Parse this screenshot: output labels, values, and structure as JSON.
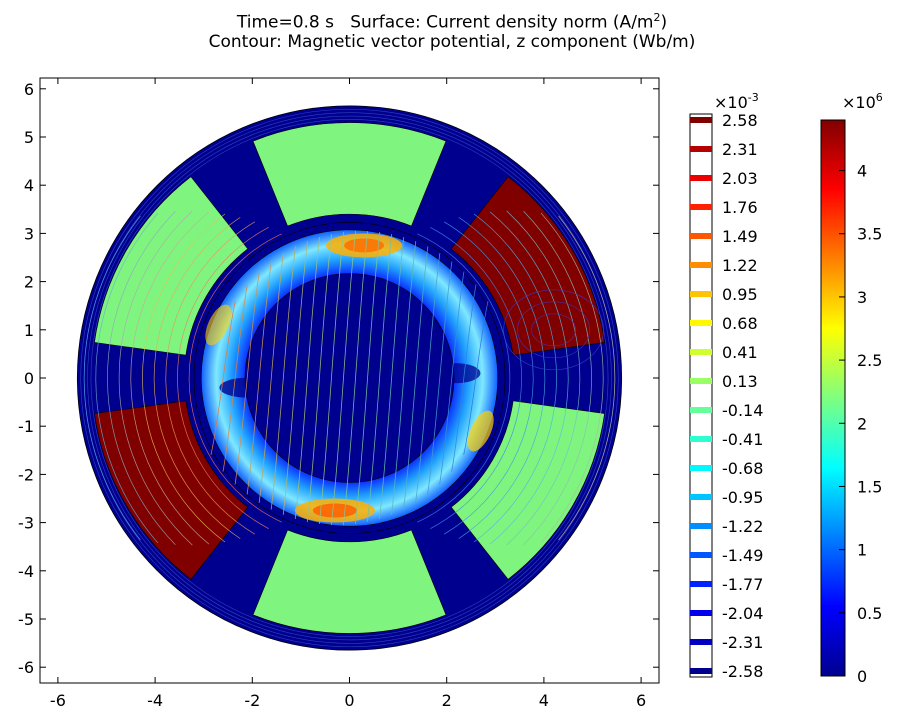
{
  "title": {
    "line1_text": "Time=0.8 s   Surface: Current density norm (A/m",
    "line1_sup": "2",
    "line1_end": ")",
    "line2": "Contour: Magnetic vector potential, z component (Wb/m)"
  },
  "chart_data": {
    "type": "heatmap",
    "title": "Time=0.8 s   Surface: Current density norm (A/m²)  Contour: Magnetic vector potential, z component (Wb/m)",
    "xlim": [
      -6.3,
      6.3
    ],
    "ylim": [
      -6.3,
      6.3
    ],
    "x_ticks": [
      -6,
      -4,
      -2,
      0,
      2,
      4,
      6
    ],
    "y_ticks": [
      -6,
      -5,
      -4,
      -3,
      -2,
      -1,
      0,
      1,
      2,
      3,
      4,
      5,
      6
    ],
    "geometry": {
      "outer_radius": 5.6,
      "stator_inner_radius": 3.2,
      "sleeve_outer_radius": 3.05,
      "sleeve_inner_radius": 2.15,
      "coil_inner_radius": 3.4,
      "coil_outer_radius": 5.3,
      "coil_half_width_deg": 22
    },
    "coils": [
      {
        "angle_deg": 90,
        "state": "mid"
      },
      {
        "angle_deg": 30,
        "state": "high"
      },
      {
        "angle_deg": -30,
        "state": "mid"
      },
      {
        "angle_deg": -90,
        "state": "mid"
      },
      {
        "angle_deg": -150,
        "state": "high"
      },
      {
        "angle_deg": 150,
        "state": "mid"
      }
    ],
    "surface_colorbar": {
      "exponent_label": "×10",
      "exponent_sup": "6",
      "range": [
        0,
        4.4
      ],
      "ticks": [
        "4",
        "3.5",
        "3",
        "2.5",
        "2",
        "1.5",
        "1",
        "0.5",
        "0"
      ],
      "tick_values": [
        4,
        3.5,
        3,
        2.5,
        2,
        1.5,
        1,
        0.5,
        0
      ]
    },
    "contour_legend": {
      "exponent_label": "×10",
      "exponent_sup": "-3",
      "levels": [
        "2.58",
        "2.31",
        "2.03",
        "1.76",
        "1.49",
        "1.22",
        "0.95",
        "0.68",
        "0.41",
        "0.13",
        "-0.14",
        "-0.41",
        "-0.68",
        "-0.95",
        "-1.22",
        "-1.49",
        "-1.77",
        "-2.04",
        "-2.31",
        "-2.58"
      ]
    },
    "colors": {
      "background_region": "#00008f",
      "coil_mid": "#7ff57f",
      "coil_high": "#800000"
    }
  }
}
